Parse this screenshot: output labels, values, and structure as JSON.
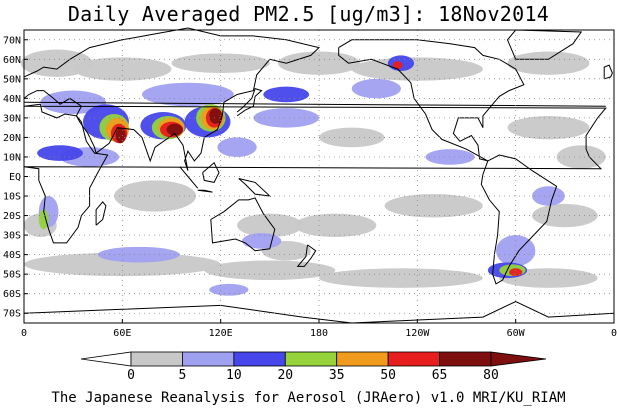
{
  "title": "Daily Averaged PM2.5 [ug/m3]: 18Nov2014",
  "footer": "The Japanese Reanalysis for Aerosol (JRAero) v1.0 MRI/KU_RIAM",
  "map": {
    "projection": "equirectangular",
    "lon_range": [
      0,
      360
    ],
    "lat_range": [
      -75,
      75
    ],
    "grid": "dotted",
    "lat_ticks": [
      {
        "lat": 70,
        "label": "70N"
      },
      {
        "lat": 60,
        "label": "60N"
      },
      {
        "lat": 50,
        "label": "50N"
      },
      {
        "lat": 40,
        "label": "40N"
      },
      {
        "lat": 30,
        "label": "30N"
      },
      {
        "lat": 20,
        "label": "20N"
      },
      {
        "lat": 10,
        "label": "10N"
      },
      {
        "lat": 0,
        "label": "EQ"
      },
      {
        "lat": -10,
        "label": "10S"
      },
      {
        "lat": -20,
        "label": "20S"
      },
      {
        "lat": -30,
        "label": "30S"
      },
      {
        "lat": -40,
        "label": "40S"
      },
      {
        "lat": -50,
        "label": "50S"
      },
      {
        "lat": -60,
        "label": "60S"
      },
      {
        "lat": -70,
        "label": "70S"
      }
    ],
    "lon_ticks": [
      {
        "lon": 0,
        "label": "0"
      },
      {
        "lon": 60,
        "label": "60E"
      },
      {
        "lon": 120,
        "label": "120E"
      },
      {
        "lon": 180,
        "label": "180"
      },
      {
        "lon": 240,
        "label": "120W"
      },
      {
        "lon": 300,
        "label": "60W"
      },
      {
        "lon": 360,
        "label": "0"
      }
    ]
  },
  "colorbar": {
    "levels": [
      "0",
      "5",
      "10",
      "20",
      "35",
      "50",
      "65",
      "80"
    ],
    "colors": [
      "#ffffff",
      "#c8c8c8",
      "#a0a0f0",
      "#4646eb",
      "#96d23c",
      "#f09b1e",
      "#e61e1e",
      "#7d0f0f"
    ]
  }
}
